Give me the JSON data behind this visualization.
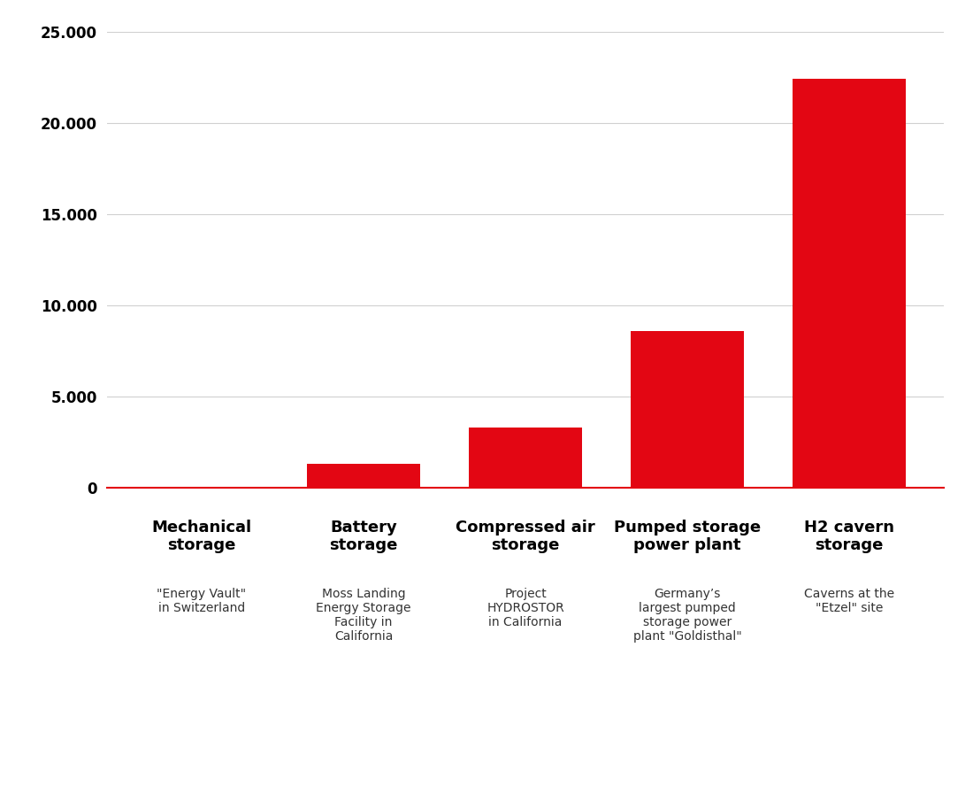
{
  "categories": [
    "Mechanical\nstorage",
    "Battery\nstorage",
    "Compressed air\nstorage",
    "Pumped storage\npower plant",
    "H2 cavern\nstorage"
  ],
  "subtitles": [
    "\"Energy Vault\"\nin Switzerland",
    "Moss Landing\nEnergy Storage\nFacility in\nCalifornia",
    "Project\nHYDROSTOR\nin California",
    "Germany’s\nlargest pumped\nstorage power\nplant \"Goldisthal\"",
    "Caverns at the\n\"Etzel\" site"
  ],
  "values": [
    20,
    1300,
    3300,
    8550,
    22400
  ],
  "bar_color": "#e30613",
  "background_color": "#ffffff",
  "ylim": [
    0,
    25000
  ],
  "yticks": [
    0,
    5000,
    10000,
    15000,
    20000,
    25000
  ],
  "ytick_labels": [
    "0",
    "5.000",
    "10.000",
    "15.000",
    "20.000",
    "25.000"
  ],
  "grid_color": "#d0d0d0",
  "cat_fontsize": 13,
  "sub_fontsize": 10,
  "ytick_fontsize": 12
}
